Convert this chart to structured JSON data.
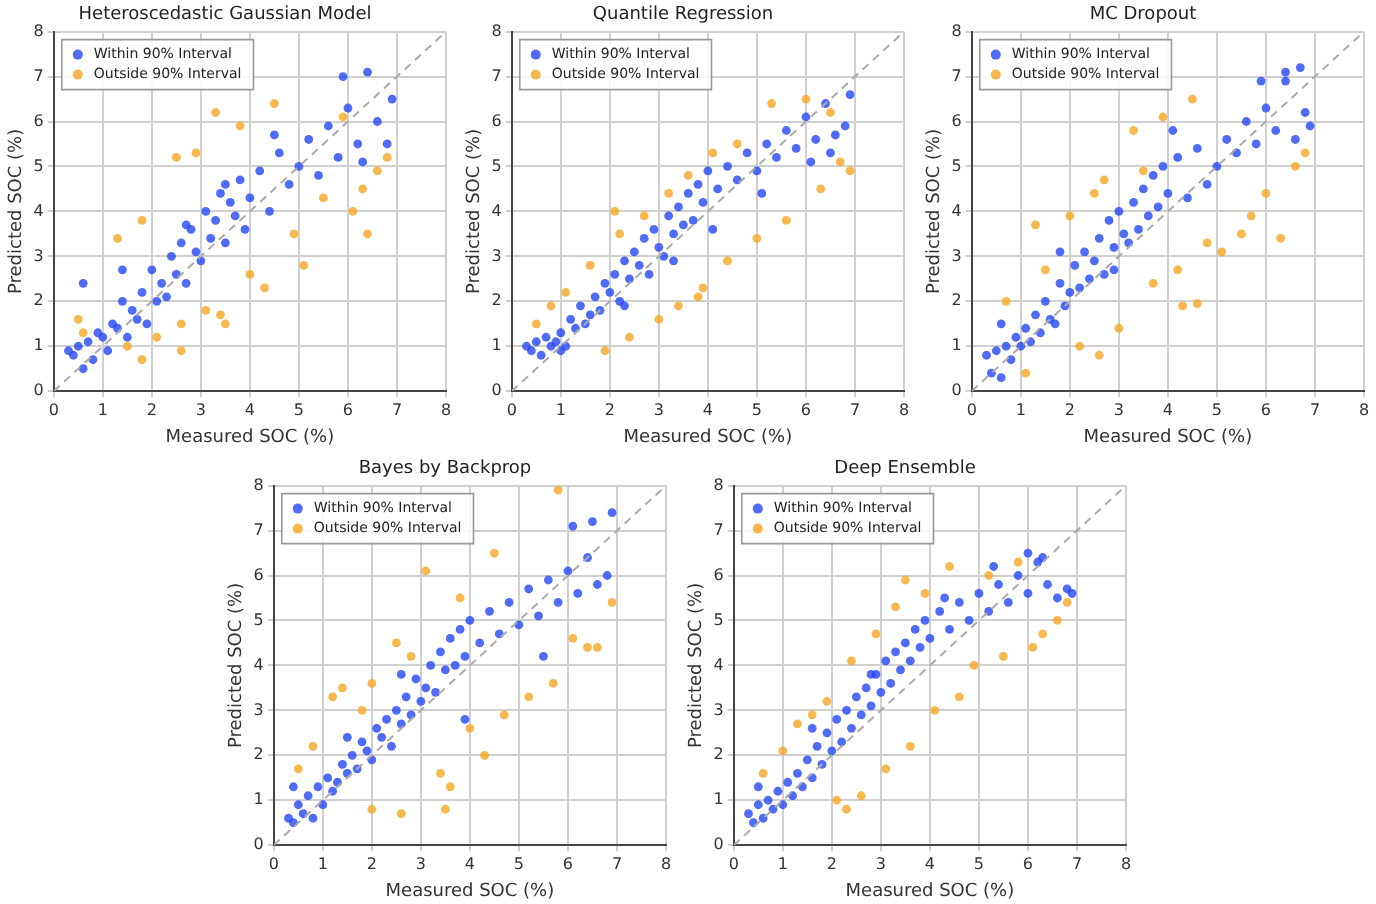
{
  "chart_data": [
    {
      "type": "scatter",
      "title": "Heteroscedastic Gaussian Model",
      "xlabel": "Measured SOC (%)",
      "ylabel": "Predicted SOC (%)",
      "xlim": [
        0,
        8
      ],
      "ylim": [
        0,
        8
      ],
      "xticks": [
        0,
        1,
        2,
        3,
        4,
        5,
        6,
        7,
        8
      ],
      "yticks": [
        0,
        1,
        2,
        3,
        4,
        5,
        6,
        7,
        8
      ],
      "grid": true,
      "legend": "top left",
      "marker": "circle",
      "series": [
        {
          "name": "Within 90% Interval",
          "color": "#2346f5",
          "x": [
            0.3,
            0.4,
            0.5,
            0.6,
            0.7,
            0.8,
            0.9,
            1.0,
            1.1,
            1.2,
            1.3,
            1.4,
            1.5,
            1.6,
            1.7,
            1.8,
            1.9,
            2.0,
            2.1,
            2.2,
            2.3,
            2.4,
            2.5,
            2.6,
            2.7,
            2.8,
            2.9,
            3.0,
            3.1,
            3.2,
            3.3,
            3.4,
            3.5,
            3.6,
            3.7,
            3.8,
            3.9,
            4.0,
            4.2,
            4.4,
            4.6,
            4.8,
            5.0,
            5.2,
            5.4,
            5.6,
            5.8,
            6.0,
            6.2,
            6.4,
            6.6,
            6.8,
            6.9,
            0.6,
            1.4,
            2.7,
            3.5,
            4.5,
            5.9,
            6.3
          ],
          "values": [
            0.9,
            0.8,
            1.0,
            0.5,
            1.1,
            0.7,
            1.3,
            1.2,
            0.9,
            1.5,
            1.4,
            2.0,
            1.2,
            1.8,
            1.6,
            2.2,
            1.5,
            2.7,
            2.0,
            2.4,
            2.1,
            3.0,
            2.6,
            3.3,
            2.4,
            3.6,
            3.1,
            2.9,
            4.0,
            3.4,
            3.8,
            4.4,
            3.3,
            4.2,
            3.9,
            4.7,
            3.6,
            4.3,
            4.9,
            4.0,
            5.3,
            4.6,
            5.0,
            5.6,
            4.8,
            5.9,
            5.2,
            6.3,
            5.5,
            7.1,
            6.0,
            5.5,
            6.5,
            2.4,
            2.7,
            3.7,
            4.6,
            5.7,
            7.0,
            5.1
          ]
        },
        {
          "name": "Outside 90% Interval",
          "color": "#f5a623",
          "x": [
            0.5,
            0.6,
            1.3,
            1.5,
            1.8,
            2.1,
            2.5,
            2.6,
            2.9,
            3.1,
            3.3,
            3.5,
            3.8,
            4.0,
            4.3,
            4.5,
            4.9,
            5.1,
            5.5,
            5.9,
            6.1,
            6.3,
            6.4,
            6.6,
            6.8,
            1.8,
            2.6,
            3.4
          ],
          "values": [
            1.6,
            1.3,
            3.4,
            1.0,
            3.8,
            1.2,
            5.2,
            1.5,
            5.3,
            1.8,
            6.2,
            1.5,
            5.9,
            2.6,
            2.3,
            6.4,
            3.5,
            2.8,
            4.3,
            6.1,
            4.0,
            4.5,
            3.5,
            4.9,
            5.2,
            0.7,
            0.9,
            1.7
          ]
        },
        {
          "type": "line",
          "color": "#aaaaaa",
          "line_style": "dashed",
          "marker": "none",
          "x": [
            0,
            8
          ],
          "values": [
            0,
            8
          ]
        }
      ]
    },
    {
      "type": "scatter",
      "title": "Quantile Regression",
      "xlabel": "Measured SOC (%)",
      "ylabel": "Predicted SOC (%)",
      "xlim": [
        0,
        8
      ],
      "ylim": [
        0,
        8
      ],
      "xticks": [
        0,
        1,
        2,
        3,
        4,
        5,
        6,
        7,
        8
      ],
      "yticks": [
        0,
        1,
        2,
        3,
        4,
        5,
        6,
        7,
        8
      ],
      "grid": true,
      "legend": "top left",
      "marker": "circle",
      "series": [
        {
          "name": "Within 90% Interval",
          "color": "#2346f5",
          "x": [
            0.3,
            0.4,
            0.5,
            0.6,
            0.7,
            0.8,
            0.9,
            1.0,
            1.1,
            1.2,
            1.3,
            1.4,
            1.5,
            1.6,
            1.7,
            1.8,
            1.9,
            2.0,
            2.1,
            2.2,
            2.3,
            2.4,
            2.5,
            2.6,
            2.7,
            2.8,
            2.9,
            3.0,
            3.1,
            3.2,
            3.3,
            3.4,
            3.5,
            3.6,
            3.7,
            3.8,
            3.9,
            4.0,
            4.2,
            4.4,
            4.6,
            4.8,
            5.0,
            5.2,
            5.4,
            5.6,
            5.8,
            6.0,
            6.2,
            6.4,
            6.6,
            6.8,
            6.9,
            1.0,
            2.3,
            3.3,
            4.1,
            5.1,
            6.1,
            6.5
          ],
          "values": [
            1.0,
            0.9,
            1.1,
            0.8,
            1.2,
            1.0,
            1.1,
            1.3,
            1.0,
            1.6,
            1.4,
            1.9,
            1.5,
            1.7,
            2.1,
            1.8,
            2.4,
            2.2,
            2.6,
            2.0,
            2.9,
            2.5,
            3.1,
            2.8,
            3.4,
            2.6,
            3.6,
            3.2,
            3.0,
            3.9,
            3.5,
            4.1,
            3.7,
            4.4,
            3.8,
            4.6,
            4.2,
            4.9,
            4.5,
            5.0,
            4.7,
            5.3,
            4.9,
            5.5,
            5.2,
            5.8,
            5.4,
            6.1,
            5.6,
            6.4,
            5.7,
            5.9,
            6.6,
            0.9,
            1.9,
            2.9,
            3.6,
            4.4,
            5.1,
            5.3
          ]
        },
        {
          "name": "Outside 90% Interval",
          "color": "#f5a623",
          "x": [
            0.5,
            0.8,
            1.1,
            1.6,
            1.9,
            2.2,
            2.4,
            2.7,
            3.0,
            3.2,
            3.4,
            3.6,
            3.9,
            4.1,
            4.4,
            4.6,
            5.0,
            5.3,
            5.6,
            6.0,
            6.3,
            6.5,
            6.7,
            6.9,
            2.1,
            3.8
          ],
          "values": [
            1.5,
            1.9,
            2.2,
            2.8,
            0.9,
            3.5,
            1.2,
            3.9,
            1.6,
            4.4,
            1.9,
            4.8,
            2.3,
            5.3,
            2.9,
            5.5,
            3.4,
            6.4,
            3.8,
            6.5,
            4.5,
            6.2,
            5.1,
            4.9,
            4.0,
            2.1
          ]
        },
        {
          "type": "line",
          "color": "#aaaaaa",
          "line_style": "dashed",
          "marker": "none",
          "x": [
            0,
            8
          ],
          "values": [
            0,
            8
          ]
        }
      ]
    },
    {
      "type": "scatter",
      "title": "MC Dropout",
      "xlabel": "Measured SOC (%)",
      "ylabel": "Predicted SOC (%)",
      "xlim": [
        0,
        8
      ],
      "ylim": [
        0,
        8
      ],
      "xticks": [
        0,
        1,
        2,
        3,
        4,
        5,
        6,
        7,
        8
      ],
      "yticks": [
        0,
        1,
        2,
        3,
        4,
        5,
        6,
        7,
        8
      ],
      "grid": true,
      "legend": "top left",
      "marker": "circle",
      "series": [
        {
          "name": "Within 90% Interval",
          "color": "#2346f5",
          "x": [
            0.3,
            0.4,
            0.5,
            0.6,
            0.7,
            0.8,
            0.9,
            1.0,
            1.1,
            1.2,
            1.3,
            1.4,
            1.5,
            1.6,
            1.7,
            1.8,
            1.9,
            2.0,
            2.1,
            2.2,
            2.3,
            2.4,
            2.5,
            2.6,
            2.7,
            2.8,
            2.9,
            3.0,
            3.1,
            3.2,
            3.3,
            3.4,
            3.5,
            3.6,
            3.7,
            3.8,
            3.9,
            4.0,
            4.2,
            4.4,
            4.6,
            4.8,
            5.0,
            5.2,
            5.4,
            5.6,
            5.8,
            6.0,
            6.2,
            6.4,
            6.6,
            6.8,
            6.9,
            0.6,
            1.8,
            2.9,
            4.1,
            5.9,
            6.4,
            6.7
          ],
          "values": [
            0.8,
            0.4,
            0.9,
            0.3,
            1.0,
            0.7,
            1.2,
            1.0,
            1.4,
            1.1,
            1.7,
            1.3,
            2.0,
            1.6,
            1.5,
            2.4,
            1.9,
            2.2,
            2.8,
            2.3,
            3.1,
            2.5,
            2.9,
            3.4,
            2.6,
            3.8,
            3.2,
            4.0,
            3.5,
            3.3,
            4.2,
            3.6,
            4.5,
            3.9,
            4.8,
            4.1,
            5.0,
            4.4,
            5.2,
            4.3,
            5.4,
            4.6,
            5.0,
            5.6,
            5.3,
            6.0,
            5.5,
            6.3,
            5.8,
            6.9,
            5.6,
            6.2,
            5.9,
            1.5,
            3.1,
            2.7,
            5.8,
            6.9,
            7.1,
            7.2
          ]
        },
        {
          "name": "Outside 90% Interval",
          "color": "#f5a623",
          "x": [
            0.7,
            1.1,
            1.3,
            1.5,
            2.0,
            2.2,
            2.6,
            2.7,
            3.0,
            3.3,
            3.5,
            3.7,
            3.9,
            4.2,
            4.3,
            4.5,
            4.8,
            5.1,
            5.5,
            5.7,
            6.0,
            6.3,
            6.6,
            6.8,
            2.5,
            4.6
          ],
          "values": [
            2.0,
            0.4,
            3.7,
            2.7,
            3.9,
            1.0,
            0.8,
            4.7,
            1.4,
            5.8,
            4.9,
            2.4,
            6.1,
            2.7,
            1.9,
            6.5,
            3.3,
            3.1,
            3.5,
            3.9,
            4.4,
            3.4,
            5.0,
            5.3,
            4.4,
            1.95
          ]
        },
        {
          "type": "line",
          "color": "#aaaaaa",
          "line_style": "dashed",
          "marker": "none",
          "x": [
            0,
            8
          ],
          "values": [
            0,
            8
          ]
        }
      ]
    },
    {
      "type": "scatter",
      "title": "Bayes by Backprop",
      "xlabel": "Measured SOC (%)",
      "ylabel": "Predicted SOC (%)",
      "xlim": [
        0,
        8
      ],
      "ylim": [
        0,
        8
      ],
      "xticks": [
        0,
        1,
        2,
        3,
        4,
        5,
        6,
        7,
        8
      ],
      "yticks": [
        0,
        1,
        2,
        3,
        4,
        5,
        6,
        7,
        8
      ],
      "grid": true,
      "legend": "top left",
      "marker": "circle",
      "series": [
        {
          "name": "Within 90% Interval",
          "color": "#2346f5",
          "x": [
            0.3,
            0.4,
            0.5,
            0.6,
            0.7,
            0.8,
            0.9,
            1.0,
            1.1,
            1.2,
            1.3,
            1.4,
            1.5,
            1.6,
            1.7,
            1.8,
            1.9,
            2.0,
            2.1,
            2.2,
            2.3,
            2.4,
            2.5,
            2.6,
            2.7,
            2.8,
            2.9,
            3.0,
            3.1,
            3.2,
            3.3,
            3.4,
            3.5,
            3.6,
            3.7,
            3.8,
            3.9,
            4.0,
            4.2,
            4.4,
            4.6,
            4.8,
            5.0,
            5.2,
            5.4,
            5.6,
            5.8,
            6.0,
            6.2,
            6.4,
            6.6,
            6.8,
            6.9,
            0.4,
            1.5,
            2.6,
            3.9,
            5.5,
            6.1,
            6.5
          ],
          "values": [
            0.6,
            0.5,
            0.9,
            0.7,
            1.1,
            0.6,
            1.3,
            0.9,
            1.5,
            1.2,
            1.4,
            1.8,
            1.6,
            2.0,
            1.7,
            2.3,
            2.1,
            1.9,
            2.6,
            2.4,
            2.8,
            2.2,
            3.0,
            2.7,
            3.3,
            2.9,
            3.7,
            3.2,
            3.5,
            4.0,
            3.4,
            4.3,
            3.9,
            4.6,
            4.0,
            4.8,
            4.2,
            5.0,
            4.5,
            5.2,
            4.7,
            5.4,
            4.9,
            5.7,
            5.1,
            5.9,
            5.4,
            6.1,
            5.6,
            6.4,
            5.8,
            6.0,
            7.4,
            1.3,
            2.4,
            3.8,
            2.8,
            4.2,
            7.1,
            7.2
          ]
        },
        {
          "name": "Outside 90% Interval",
          "color": "#f5a623",
          "x": [
            0.5,
            0.8,
            1.2,
            1.4,
            1.8,
            2.0,
            2.5,
            2.6,
            2.8,
            3.1,
            3.4,
            3.5,
            3.8,
            4.0,
            4.3,
            4.5,
            4.7,
            5.2,
            5.7,
            5.8,
            6.1,
            6.4,
            6.6,
            6.9,
            3.6,
            2.0
          ],
          "values": [
            1.7,
            2.2,
            3.3,
            3.5,
            3.0,
            0.8,
            4.5,
            0.7,
            4.2,
            6.1,
            1.6,
            0.8,
            5.5,
            2.6,
            2.0,
            6.5,
            2.9,
            3.3,
            3.6,
            7.9,
            4.6,
            4.4,
            4.4,
            5.4,
            1.3,
            3.6
          ]
        },
        {
          "type": "line",
          "color": "#aaaaaa",
          "line_style": "dashed",
          "marker": "none",
          "x": [
            0,
            8
          ],
          "values": [
            0,
            8
          ]
        }
      ]
    },
    {
      "type": "scatter",
      "title": "Deep Ensemble",
      "xlabel": "Measured SOC (%)",
      "ylabel": "Predicted SOC (%)",
      "xlim": [
        0,
        8
      ],
      "ylim": [
        0,
        8
      ],
      "xticks": [
        0,
        1,
        2,
        3,
        4,
        5,
        6,
        7,
        8
      ],
      "yticks": [
        0,
        1,
        2,
        3,
        4,
        5,
        6,
        7,
        8
      ],
      "grid": true,
      "legend": "top left",
      "marker": "circle",
      "series": [
        {
          "name": "Within 90% Interval",
          "color": "#2346f5",
          "x": [
            0.3,
            0.4,
            0.5,
            0.6,
            0.7,
            0.8,
            0.9,
            1.0,
            1.1,
            1.2,
            1.3,
            1.4,
            1.5,
            1.6,
            1.7,
            1.8,
            1.9,
            2.0,
            2.1,
            2.2,
            2.3,
            2.4,
            2.5,
            2.6,
            2.7,
            2.8,
            2.9,
            3.0,
            3.1,
            3.2,
            3.3,
            3.4,
            3.5,
            3.6,
            3.7,
            3.8,
            3.9,
            4.0,
            4.2,
            4.4,
            4.6,
            4.8,
            5.0,
            5.2,
            5.4,
            5.6,
            5.8,
            6.0,
            6.2,
            6.4,
            6.6,
            6.8,
            6.9,
            0.5,
            1.6,
            2.8,
            4.3,
            5.3,
            6.0,
            6.3
          ],
          "values": [
            0.7,
            0.5,
            0.9,
            0.6,
            1.0,
            0.8,
            1.2,
            0.9,
            1.4,
            1.1,
            1.6,
            1.3,
            1.9,
            1.5,
            2.2,
            1.8,
            2.5,
            2.1,
            2.8,
            2.3,
            3.0,
            2.6,
            3.3,
            2.9,
            3.5,
            3.1,
            3.8,
            3.4,
            4.1,
            3.6,
            4.3,
            3.9,
            4.5,
            4.1,
            4.8,
            4.4,
            5.0,
            4.6,
            5.2,
            4.8,
            5.4,
            5.0,
            5.6,
            5.2,
            5.8,
            5.4,
            6.0,
            5.6,
            6.3,
            5.8,
            5.5,
            5.7,
            5.6,
            1.3,
            2.6,
            3.8,
            5.5,
            6.2,
            6.5,
            6.4
          ]
        },
        {
          "name": "Outside 90% Interval",
          "color": "#f5a623",
          "x": [
            0.6,
            1.0,
            1.3,
            1.6,
            1.9,
            2.1,
            2.4,
            2.6,
            2.9,
            3.1,
            3.3,
            3.6,
            3.9,
            4.1,
            4.4,
            4.6,
            4.9,
            5.2,
            5.5,
            5.8,
            6.1,
            6.3,
            6.6,
            6.8,
            2.3,
            3.5
          ],
          "values": [
            1.6,
            2.1,
            2.7,
            2.9,
            3.2,
            1.0,
            4.1,
            1.1,
            4.7,
            1.7,
            5.3,
            2.2,
            5.6,
            3.0,
            6.2,
            3.3,
            4.0,
            6.0,
            4.2,
            6.3,
            4.4,
            4.7,
            5.0,
            5.4,
            0.8,
            5.9
          ]
        },
        {
          "type": "line",
          "color": "#aaaaaa",
          "line_style": "dashed",
          "marker": "none",
          "x": [
            0,
            8
          ],
          "values": [
            0,
            8
          ]
        }
      ]
    }
  ]
}
